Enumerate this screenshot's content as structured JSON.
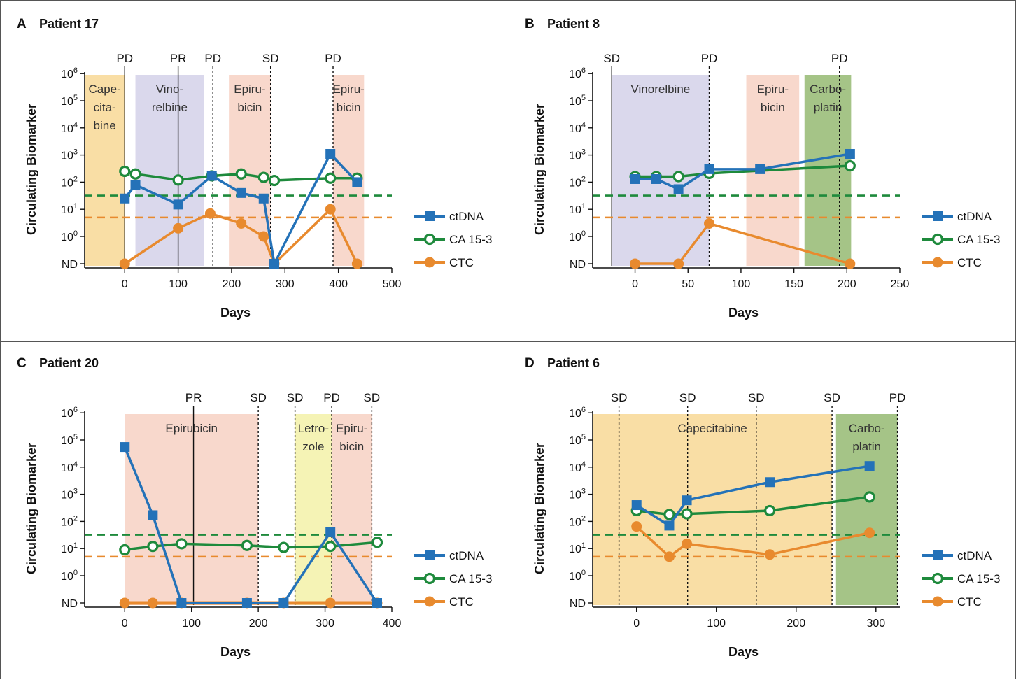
{
  "figure": {
    "legend_labels": [
      "ctDNA",
      "CA 15-3",
      "CTC"
    ],
    "y_axis_label": "Circulating Biomarker",
    "x_axis_label": "Days"
  },
  "colors": {
    "ctDNA": "#2472b8",
    "CA 15-3": "#1e8a3c",
    "CTC": "#e88a2e",
    "threshold_green": "#1e8a3c",
    "threshold_orange": "#e88a2e",
    "capecitabine": "#f9dea5",
    "vinorelbine": "#dad8ec",
    "epirubicin": "#f8d8cc",
    "carboplatin": "#a5c487",
    "letrozole": "#f5f3b5"
  },
  "chart_data": [
    {
      "type": "line",
      "panel_letter": "A",
      "title": "Patient 17",
      "xlabel": "Days",
      "ylabel": "Circulating Biomarker",
      "xlim": [
        -75,
        500
      ],
      "x_ticks": [
        0,
        100,
        200,
        300,
        400,
        500
      ],
      "y_scale": "log",
      "y_tick_labels": [
        "ND",
        "10^0",
        "10^1",
        "10^2",
        "10^3",
        "10^4",
        "10^5",
        "10^6"
      ],
      "threshold_lines": [
        {
          "series": "CA 15-3",
          "value": 32
        },
        {
          "series": "CTC",
          "value": 5
        }
      ],
      "treatments": [
        {
          "label_lines": [
            "Cape-",
            "cita-",
            "bine"
          ],
          "start": -75,
          "end": 0,
          "color_key": "capecitabine"
        },
        {
          "label_lines": [
            "Vino-",
            "relbine"
          ],
          "start": 20,
          "end": 148,
          "color_key": "vinorelbine"
        },
        {
          "label_lines": [
            "Epiru-",
            "bicin"
          ],
          "start": 195,
          "end": 273,
          "color_key": "epirubicin"
        },
        {
          "label_lines": [
            "Epiru-",
            "bicin"
          ],
          "start": 390,
          "end": 448,
          "color_key": "epirubicin"
        }
      ],
      "responses": [
        {
          "label": "PD",
          "day": 0,
          "line": "solid"
        },
        {
          "label": "PR",
          "day": 100,
          "line": "solid"
        },
        {
          "label": "PD",
          "day": 165,
          "line": "dotted"
        },
        {
          "label": "SD",
          "day": 273,
          "line": "dotted"
        },
        {
          "label": "PD",
          "day": 390,
          "line": "dotted"
        }
      ],
      "series": [
        {
          "name": "ctDNA",
          "x": [
            0,
            20,
            100,
            163,
            218,
            260,
            280,
            385,
            435
          ],
          "y": [
            25,
            80,
            15,
            170,
            40,
            25,
            "ND",
            1100,
            100
          ]
        },
        {
          "name": "CA 15-3",
          "x": [
            0,
            20,
            100,
            163,
            218,
            260,
            280,
            385,
            435
          ],
          "y": [
            250,
            200,
            120,
            170,
            200,
            150,
            115,
            140,
            140
          ]
        },
        {
          "name": "CTC",
          "x": [
            0,
            100,
            160,
            218,
            260,
            280,
            385,
            435
          ],
          "y": [
            "ND",
            2,
            7,
            3,
            1,
            "ND",
            10,
            "ND"
          ]
        }
      ]
    },
    {
      "type": "line",
      "panel_letter": "B",
      "title": "Patient 8",
      "xlabel": "Days",
      "ylabel": "Circulating Biomarker",
      "xlim": [
        -40,
        250
      ],
      "x_ticks": [
        0,
        50,
        100,
        150,
        200,
        250
      ],
      "y_scale": "log",
      "y_tick_labels": [
        "ND",
        "10^0",
        "10^1",
        "10^2",
        "10^3",
        "10^4",
        "10^5",
        "10^6"
      ],
      "threshold_lines": [
        {
          "series": "CA 15-3",
          "value": 32
        },
        {
          "series": "CTC",
          "value": 5
        }
      ],
      "treatments": [
        {
          "label_lines": [
            "Vinorelbine"
          ],
          "start": -22,
          "end": 70,
          "color_key": "vinorelbine"
        },
        {
          "label_lines": [
            "Epiru-",
            "bicin"
          ],
          "start": 105,
          "end": 155,
          "color_key": "epirubicin"
        },
        {
          "label_lines": [
            "Carbo-",
            "platin"
          ],
          "start": 160,
          "end": 204,
          "color_key": "carboplatin"
        }
      ],
      "responses": [
        {
          "label": "SD",
          "day": -22,
          "line": "solid"
        },
        {
          "label": "PD",
          "day": 70,
          "line": "dotted"
        },
        {
          "label": "PD",
          "day": 193,
          "line": "dotted"
        }
      ],
      "series": [
        {
          "name": "ctDNA",
          "x": [
            0,
            20,
            41,
            70,
            118,
            203
          ],
          "y": [
            130,
            130,
            55,
            300,
            300,
            1100
          ]
        },
        {
          "name": "CA 15-3",
          "x": [
            0,
            20,
            41,
            70,
            203
          ],
          "y": [
            160,
            160,
            160,
            210,
            400
          ]
        },
        {
          "name": "CTC",
          "x": [
            0,
            41,
            70,
            203
          ],
          "y": [
            "ND",
            "ND",
            3,
            "ND"
          ]
        }
      ]
    },
    {
      "type": "line",
      "panel_letter": "C",
      "title": "Patient 20",
      "xlabel": "Days",
      "ylabel": "Circulating Biomarker",
      "xlim": [
        -60,
        400
      ],
      "x_ticks": [
        0,
        100,
        200,
        300,
        400
      ],
      "y_scale": "log",
      "y_tick_labels": [
        "ND",
        "10^0",
        "10^1",
        "10^2",
        "10^3",
        "10^4",
        "10^5",
        "10^6"
      ],
      "threshold_lines": [
        {
          "series": "CA 15-3",
          "value": 32
        },
        {
          "series": "CTC",
          "value": 5
        }
      ],
      "treatments": [
        {
          "label_lines": [
            "Epirubicin"
          ],
          "start": 0,
          "end": 200,
          "color_key": "epirubicin"
        },
        {
          "label_lines": [
            "Letro-",
            "zole"
          ],
          "start": 255,
          "end": 310,
          "color_key": "letrozole"
        },
        {
          "label_lines": [
            "Epiru-",
            "bicin"
          ],
          "start": 310,
          "end": 370,
          "color_key": "epirubicin"
        }
      ],
      "responses": [
        {
          "label": "PR",
          "day": 103,
          "line": "solid"
        },
        {
          "label": "SD",
          "day": 200,
          "line": "dotted"
        },
        {
          "label": "SD",
          "day": 255,
          "line": "dotted"
        },
        {
          "label": "PD",
          "day": 310,
          "line": "dotted"
        },
        {
          "label": "SD",
          "day": 370,
          "line": "dotted"
        }
      ],
      "series": [
        {
          "name": "ctDNA",
          "x": [
            0,
            42,
            85,
            183,
            238,
            308,
            378
          ],
          "y": [
            55000,
            170,
            "ND",
            "ND",
            "ND",
            40,
            "ND"
          ]
        },
        {
          "name": "CA 15-3",
          "x": [
            0,
            42,
            85,
            183,
            238,
            308,
            378
          ],
          "y": [
            9,
            12,
            15,
            13,
            11,
            12,
            17
          ]
        },
        {
          "name": "CTC",
          "x": [
            0,
            42,
            85,
            183,
            238,
            308,
            378
          ],
          "y": [
            "ND",
            "ND",
            "ND",
            "ND",
            "ND",
            "ND",
            "ND"
          ]
        }
      ]
    },
    {
      "type": "line",
      "panel_letter": "D",
      "title": "Patient 6",
      "xlabel": "Days",
      "ylabel": "Circulating Biomarker",
      "xlim": [
        -55,
        330
      ],
      "x_ticks": [
        0,
        100,
        200,
        300
      ],
      "y_scale": "log",
      "y_tick_labels": [
        "ND",
        "10^0",
        "10^1",
        "10^2",
        "10^3",
        "10^4",
        "10^5",
        "10^6"
      ],
      "threshold_lines": [
        {
          "series": "CA 15-3",
          "value": 32
        },
        {
          "series": "CTC",
          "value": 5
        }
      ],
      "treatments": [
        {
          "label_lines": [
            "Capecitabine"
          ],
          "start": -55,
          "end": 245,
          "color_key": "capecitabine"
        },
        {
          "label_lines": [
            "Carbo-",
            "platin"
          ],
          "start": 250,
          "end": 327,
          "color_key": "carboplatin"
        }
      ],
      "responses": [
        {
          "label": "SD",
          "day": -22,
          "line": "dotted"
        },
        {
          "label": "SD",
          "day": 64,
          "line": "dotted"
        },
        {
          "label": "SD",
          "day": 150,
          "line": "dotted"
        },
        {
          "label": "SD",
          "day": 245,
          "line": "dotted"
        },
        {
          "label": "PD",
          "day": 327,
          "line": "dotted"
        }
      ],
      "series": [
        {
          "name": "ctDNA",
          "x": [
            0,
            41,
            63,
            167,
            292
          ],
          "y": [
            400,
            70,
            600,
            2800,
            11000
          ]
        },
        {
          "name": "CA 15-3",
          "x": [
            0,
            41,
            63,
            167,
            292
          ],
          "y": [
            250,
            180,
            190,
            250,
            800
          ]
        },
        {
          "name": "CTC",
          "x": [
            0,
            41,
            63,
            167,
            292
          ],
          "y": [
            65,
            5,
            15,
            6,
            38
          ]
        }
      ]
    }
  ]
}
